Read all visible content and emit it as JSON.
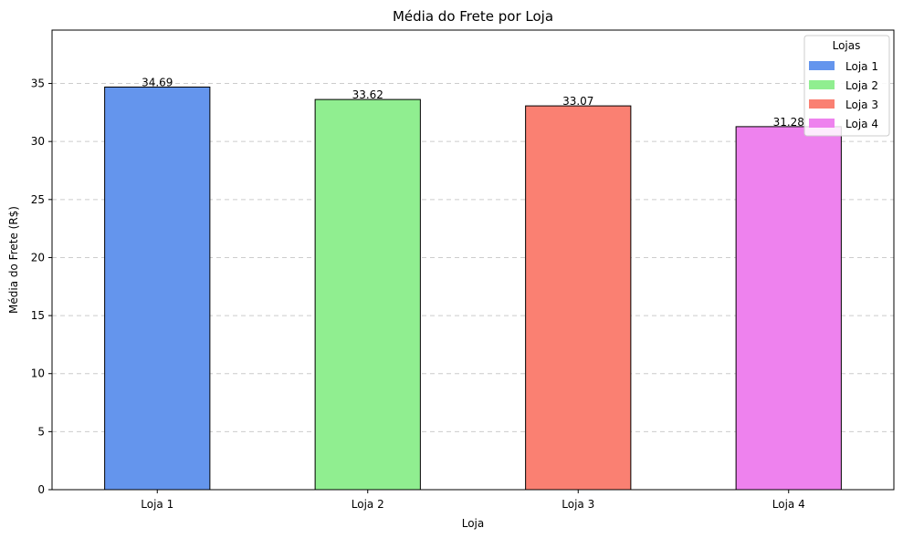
{
  "chart_data": {
    "type": "bar",
    "title": "Média do Frete por Loja",
    "xlabel": "Loja",
    "ylabel": "Média do Frete (R$)",
    "categories": [
      "Loja 1",
      "Loja 2",
      "Loja 3",
      "Loja 4"
    ],
    "values": [
      34.69,
      33.62,
      33.07,
      31.28
    ],
    "value_labels": [
      "34.69",
      "33.62",
      "33.07",
      "31.28"
    ],
    "colors": [
      "#6495ED",
      "#90EE90",
      "#FA8072",
      "#EE82EE"
    ],
    "ylim": [
      0,
      39.6
    ],
    "yticks": [
      0,
      5,
      10,
      15,
      20,
      25,
      30,
      35
    ],
    "grid": "y, dashed",
    "legend": {
      "title": "Lojas",
      "placement": "top-right",
      "entries": [
        "Loja 1",
        "Loja 2",
        "Loja 3",
        "Loja 4"
      ]
    }
  }
}
